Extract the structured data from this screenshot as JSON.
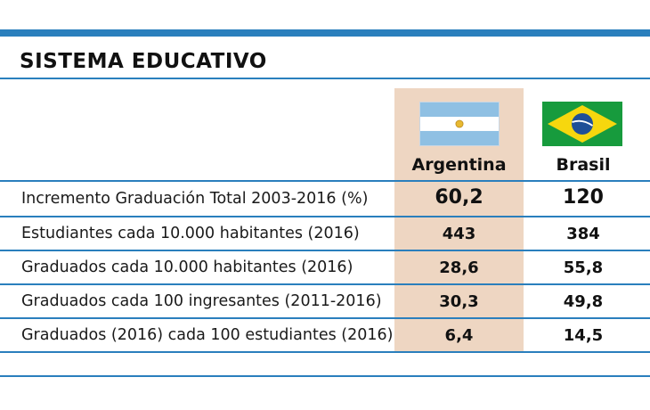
{
  "title": "SISTEMA EDUCATIVO",
  "columns": {
    "argentina": {
      "name": "Argentina",
      "flag_icon": "argentina-flag-icon"
    },
    "brasil": {
      "name": "Brasil",
      "flag_icon": "brazil-flag-icon"
    }
  },
  "colors": {
    "accent_blue": "#2a7fbd",
    "argentina_column_bg": "#eed6c2"
  },
  "rows": [
    {
      "label": "Incremento Graduación Total 2003-2016 (%)",
      "argentina": "60,2",
      "brasil": "120"
    },
    {
      "label": "Estudiantes cada 10.000 habitantes (2016)",
      "argentina": "443",
      "brasil": "384"
    },
    {
      "label": "Graduados cada 10.000 habitantes (2016)",
      "argentina": "28,6",
      "brasil": "55,8"
    },
    {
      "label": "Graduados cada 100 ingresantes (2011-2016)",
      "argentina": "30,3",
      "brasil": "49,8"
    },
    {
      "label": "Graduados (2016) cada 100 estudiantes (2016)",
      "argentina": "6,4",
      "brasil": "14,5"
    }
  ]
}
